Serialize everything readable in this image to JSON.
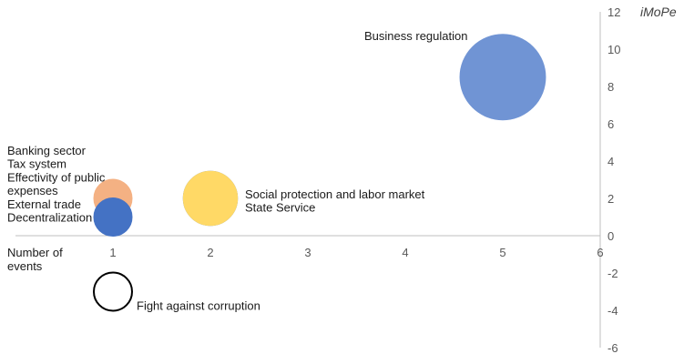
{
  "chart_data": {
    "type": "bubble",
    "title": "",
    "xlabel_lines": [
      "Number of",
      "events"
    ],
    "ylabel": "iMoPe",
    "xlim": [
      0,
      6
    ],
    "ylim": [
      -6,
      12
    ],
    "x_ticks": [
      1,
      2,
      3,
      4,
      5,
      6
    ],
    "y_ticks": [
      -6,
      -4,
      -2,
      0,
      2,
      4,
      6,
      8,
      10,
      12
    ],
    "grid": false,
    "legend": "none",
    "series": [
      {
        "x": 1,
        "y": 2,
        "size": 1,
        "color": "#f4b183",
        "outline": "#f4b183",
        "fill_opacity": 1
      },
      {
        "x": 1,
        "y": 1,
        "size": 1,
        "color": "#4472c4",
        "outline": "#4472c4",
        "fill_opacity": 1
      },
      {
        "x": 2,
        "y": 2,
        "size": 2,
        "color": "#4472c4",
        "outline": "#4472c4",
        "fill_opacity": 1
      },
      {
        "x": 2,
        "y": 2,
        "size": 2,
        "color": "#ffd966",
        "outline": "#ffd966",
        "fill_opacity": 1
      },
      {
        "x": 5,
        "y": 8.5,
        "size": 5,
        "color": "#7094d4",
        "outline": "#7094d4",
        "fill_opacity": 1
      },
      {
        "x": 1,
        "y": -3,
        "size": 1,
        "color": "#ffffff",
        "outline": "#000000",
        "fill_opacity": 1
      }
    ],
    "annotations": [
      {
        "lines": [
          "Banking sector",
          "Tax system",
          "Effectivity of public",
          "expenses",
          "External trade",
          "Decentralization"
        ],
        "x": 1,
        "y": 2,
        "anchor": "left-of"
      },
      {
        "lines": [
          "Social protection and labor market",
          "State Service"
        ],
        "x": 2,
        "y": 2,
        "anchor": "right-of"
      },
      {
        "lines": [
          "Business regulation"
        ],
        "x": 5,
        "y": 8.5,
        "anchor": "upper-left"
      },
      {
        "lines": [
          "Fight against corruption"
        ],
        "x": 1,
        "y": -3,
        "anchor": "lower-right"
      }
    ]
  }
}
